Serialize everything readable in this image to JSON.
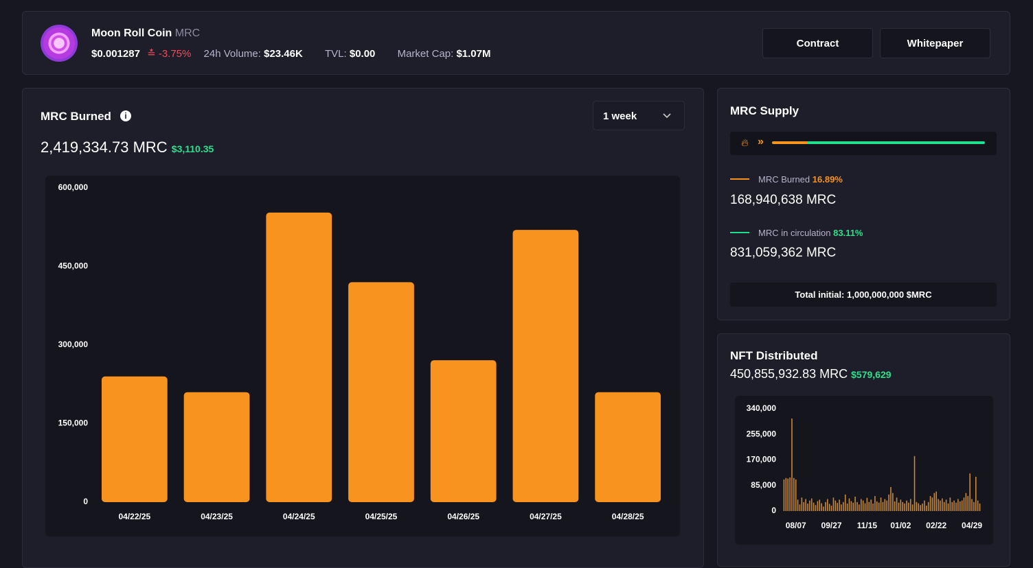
{
  "header": {
    "coin_name": "Moon Roll Coin",
    "symbol": "MRC",
    "price": "$0.001287",
    "change": "-3.75%",
    "volume_label": "24h Volume:",
    "volume": "$23.46K",
    "tvl_label": "TVL:",
    "tvl": "$0.00",
    "mcap_label": "Market Cap:",
    "mcap": "$1.07M",
    "buttons": [
      "Contract",
      "Whitepaper"
    ]
  },
  "burned": {
    "title": "MRC Burned",
    "total": "2,419,334.73 MRC",
    "usd": "$3,110.35",
    "period": "1 week"
  },
  "supply": {
    "title": "MRC Supply",
    "burned_label": "MRC Burned",
    "burned_pct": "16.89%",
    "burned_amount": "168,940,638 MRC",
    "circ_label": "MRC in circulation",
    "circ_pct": "83.11%",
    "circ_amount": "831,059,362 MRC",
    "total": "Total initial: 1,000,000,000 $MRC"
  },
  "nft": {
    "title": "NFT Distributed",
    "total": "450,855,932.83 MRC",
    "usd": "$579,629"
  },
  "chart_data": [
    {
      "type": "bar",
      "color": "#f7931e",
      "categories": [
        "04/22/25",
        "04/23/25",
        "04/24/25",
        "04/25/25",
        "04/26/25",
        "04/27/25",
        "04/28/25"
      ],
      "values": [
        240000,
        210000,
        553000,
        420000,
        271000,
        520000,
        210000
      ],
      "ylim": [
        0,
        600000
      ],
      "yticks": [
        0,
        {
          "value": 150000,
          "label": "150,000"
        },
        {
          "value": 300000,
          "label": "300,000"
        },
        {
          "value": 450000,
          "label": "450,000"
        },
        {
          "value": 600000,
          "label": "600,000"
        }
      ]
    },
    {
      "type": "bar",
      "color": "#c98a3a",
      "categories": [
        null,
        null,
        null,
        null,
        null,
        null,
        "08/07",
        null,
        null,
        null,
        null,
        null,
        null,
        null,
        null,
        null,
        null,
        null,
        null,
        null,
        null,
        null,
        null,
        null,
        "09/27",
        null,
        null,
        null,
        null,
        null,
        null,
        null,
        null,
        null,
        null,
        null,
        null,
        null,
        null,
        null,
        null,
        null,
        "11/15",
        null,
        null,
        null,
        null,
        null,
        null,
        null,
        null,
        null,
        null,
        null,
        null,
        null,
        null,
        null,
        null,
        "01/02",
        null,
        null,
        null,
        null,
        null,
        null,
        null,
        null,
        null,
        null,
        null,
        null,
        null,
        null,
        null,
        null,
        null,
        "02/22",
        null,
        null,
        null,
        null,
        null,
        null,
        null,
        null,
        null,
        null,
        null,
        null,
        null,
        null,
        null,
        null,
        null,
        "04/29",
        null,
        null,
        null,
        null
      ],
      "values": [
        105000,
        110000,
        108000,
        112000,
        308000,
        110000,
        105000,
        38000,
        22000,
        45000,
        30000,
        40000,
        25000,
        35000,
        42000,
        28000,
        20000,
        33000,
        38000,
        26000,
        15000,
        30000,
        40000,
        24000,
        18000,
        45000,
        35000,
        27000,
        38000,
        22000,
        30000,
        55000,
        25000,
        42000,
        33000,
        28000,
        48000,
        30000,
        22000,
        40000,
        35000,
        26000,
        44000,
        30000,
        38000,
        25000,
        50000,
        32000,
        28000,
        45000,
        30000,
        40000,
        35000,
        55000,
        80000,
        60000,
        32000,
        45000,
        28000,
        38000,
        30000,
        25000,
        35000,
        28000,
        40000,
        22000,
        183000,
        30000,
        26000,
        20000,
        25000,
        35000,
        18000,
        30000,
        50000,
        45000,
        60000,
        65000,
        40000,
        35000,
        42000,
        30000,
        38000,
        25000,
        45000,
        30000,
        35000,
        28000,
        40000,
        32000,
        35000,
        45000,
        60000,
        50000,
        125000,
        40000,
        30000,
        114000,
        35000,
        25000
      ],
      "ylim": [
        0,
        340000
      ],
      "yticks": [
        0,
        {
          "value": 85000,
          "label": "85,000"
        },
        {
          "value": 170000,
          "label": "170,000"
        },
        {
          "value": 255000,
          "label": "255,000"
        },
        {
          "value": 340000,
          "label": "340,000"
        }
      ]
    }
  ]
}
